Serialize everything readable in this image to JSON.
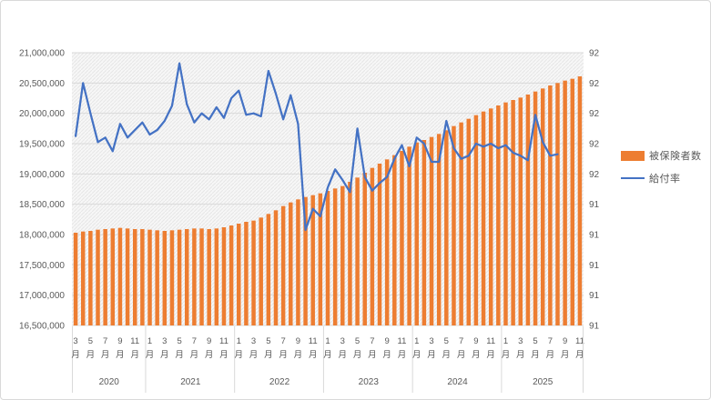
{
  "window": {
    "background": "#ffffff",
    "frame_border_color": "#d9d9d9"
  },
  "colors": {
    "bar_series": "#ED7D31",
    "line_series": "#4472C4",
    "gridline": "#D9D9D9",
    "axis_text": "#595959",
    "separator": "#D9D9D9",
    "plot_hatch_line": "#E6E6E6",
    "plot_hatch_base": "#F7F7F7"
  },
  "legend": {
    "items": [
      {
        "label": "被保険者数",
        "type": "bar",
        "color": "#ED7D31"
      },
      {
        "label": "給付率",
        "type": "line",
        "color": "#4472C4"
      }
    ]
  },
  "chart_data": {
    "type": "combo",
    "title": "",
    "x_unit_suffix": "月",
    "year_groups": [
      {
        "year": "2020",
        "first_month": 3,
        "months": 10,
        "ticks": [
          "3",
          "5",
          "7",
          "9",
          "11"
        ]
      },
      {
        "year": "2021",
        "first_month": 1,
        "months": 12,
        "ticks": [
          "1",
          "3",
          "5",
          "7",
          "9",
          "11"
        ]
      },
      {
        "year": "2022",
        "first_month": 1,
        "months": 12,
        "ticks": [
          "1",
          "3",
          "5",
          "7",
          "9",
          "11"
        ]
      },
      {
        "year": "2023",
        "first_month": 1,
        "months": 12,
        "ticks": [
          "1",
          "3",
          "5",
          "7",
          "9",
          "11"
        ]
      },
      {
        "year": "2024",
        "first_month": 1,
        "months": 12,
        "ticks": [
          "1",
          "3",
          "5",
          "7",
          "9",
          "11"
        ]
      },
      {
        "year": "2025",
        "first_month": 1,
        "months": 11,
        "ticks": [
          "1",
          "3",
          "5",
          "7",
          "9",
          "11"
        ]
      }
    ],
    "left_axis": {
      "min": 16500000,
      "max": 21000000,
      "step": 500000,
      "tick_labels": [
        "21,000,000",
        "20,500,000",
        "20,000,000",
        "19,500,000",
        "19,000,000",
        "18,500,000",
        "18,000,000",
        "17,500,000",
        "17,000,000",
        "16,500,000"
      ]
    },
    "right_axis": {
      "min": 90.6,
      "max": 92.4,
      "step": 0.2,
      "tick_labels": [
        "92",
        "92",
        "92",
        "92",
        "92",
        "91",
        "91",
        "91",
        "91",
        "91"
      ]
    },
    "gridlines": true,
    "legend_position": "right",
    "series": [
      {
        "name": "被保険者数",
        "type": "bar",
        "axis": "left",
        "color": "#ED7D31",
        "start": "2020-03",
        "values": [
          18030000,
          18050000,
          18060000,
          18080000,
          18090000,
          18100000,
          18110000,
          18100000,
          18090000,
          18090000,
          18080000,
          18070000,
          18060000,
          18070000,
          18080000,
          18090000,
          18100000,
          18100000,
          18090000,
          18100000,
          18120000,
          18150000,
          18180000,
          18210000,
          18230000,
          18280000,
          18340000,
          18400000,
          18470000,
          18530000,
          18580000,
          18620000,
          18650000,
          18680000,
          18720000,
          18760000,
          18800000,
          18870000,
          18940000,
          19020000,
          19100000,
          19170000,
          19240000,
          19310000,
          19380000,
          19450000,
          19520000,
          19560000,
          19610000,
          19660000,
          19720000,
          19790000,
          19850000,
          19910000,
          19970000,
          20030000,
          20080000,
          20130000,
          20180000,
          20220000,
          20260000,
          20310000,
          20360000,
          20410000,
          20460000,
          20500000,
          20540000,
          20570000,
          20610000
        ]
      },
      {
        "name": "給付率",
        "type": "line",
        "axis": "right",
        "color": "#4472C4",
        "start": "2020-03",
        "values": [
          91.85,
          92.2,
          92.0,
          91.81,
          91.84,
          91.75,
          91.93,
          91.84,
          91.89,
          91.94,
          91.86,
          91.89,
          91.95,
          92.05,
          92.33,
          92.06,
          91.94,
          92.0,
          91.96,
          92.04,
          91.97,
          92.1,
          92.15,
          91.99,
          92.0,
          91.98,
          92.28,
          92.13,
          91.96,
          92.12,
          91.93,
          91.23,
          91.37,
          91.32,
          91.51,
          91.63,
          91.56,
          91.48,
          91.9,
          91.58,
          91.49,
          91.54,
          91.58,
          91.7,
          91.79,
          91.65,
          91.84,
          91.8,
          91.68,
          91.68,
          91.95,
          91.77,
          91.7,
          91.72,
          91.8,
          91.78,
          91.8,
          91.77,
          91.79,
          91.74,
          91.72,
          91.69,
          91.99,
          91.81,
          91.72,
          91.73
        ]
      }
    ]
  }
}
